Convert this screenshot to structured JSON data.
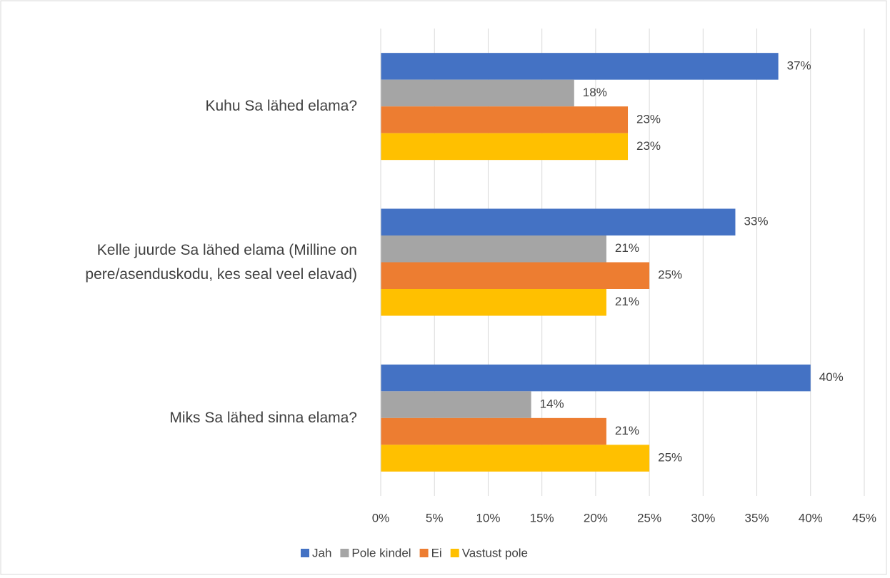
{
  "chart_data": {
    "type": "bar",
    "orientation": "horizontal",
    "categories": [
      "Kuhu Sa lähed elama?",
      "Kelle juurde Sa lähed elama (Milline on pere/asenduskodu, kes seal veel elavad)",
      "Miks Sa lähed sinna elama?"
    ],
    "series": [
      {
        "name": "Jah",
        "color": "#4472c4",
        "values": [
          37,
          33,
          40
        ],
        "value_labels": [
          "37%",
          "33%",
          "40%"
        ]
      },
      {
        "name": "Pole kindel",
        "color": "#a5a5a5",
        "values": [
          18,
          21,
          14
        ],
        "value_labels": [
          "18%",
          "21%",
          "14%"
        ]
      },
      {
        "name": "Ei",
        "color": "#ed7d31",
        "values": [
          23,
          25,
          21
        ],
        "value_labels": [
          "23%",
          "25%",
          "21%"
        ]
      },
      {
        "name": "Vastust pole",
        "color": "#ffc000",
        "values": [
          23,
          21,
          25
        ],
        "value_labels": [
          "23%",
          "21%",
          "25%"
        ]
      }
    ],
    "xlim": [
      0,
      45
    ],
    "xticks": [
      {
        "value": 0,
        "label": "0%"
      },
      {
        "value": 5,
        "label": "5%"
      },
      {
        "value": 10,
        "label": "10%"
      },
      {
        "value": 15,
        "label": "15%"
      },
      {
        "value": 20,
        "label": "20%"
      },
      {
        "value": 25,
        "label": "25%"
      },
      {
        "value": 30,
        "label": "30%"
      },
      {
        "value": 35,
        "label": "35%"
      },
      {
        "value": 40,
        "label": "40%"
      },
      {
        "value": 45,
        "label": "45%"
      }
    ],
    "grid": true,
    "legend": "bottom"
  }
}
